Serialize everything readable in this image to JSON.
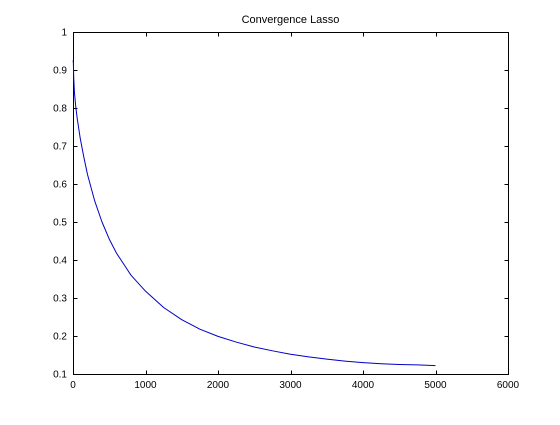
{
  "chart_data": {
    "type": "line",
    "title": "Convergence Lasso",
    "xlabel": "",
    "ylabel": "",
    "xlim": [
      0,
      6000
    ],
    "ylim": [
      0.1,
      1
    ],
    "xticks": [
      0,
      1000,
      2000,
      3000,
      4000,
      5000,
      6000
    ],
    "xtick_labels": [
      "0",
      "1000",
      "2000",
      "3000",
      "4000",
      "5000",
      "6000"
    ],
    "yticks": [
      0.1,
      0.2,
      0.3,
      0.4,
      0.5,
      0.6,
      0.7,
      0.8,
      0.9,
      1
    ],
    "ytick_labels": [
      "0.1",
      "0.2",
      "0.3",
      "0.4",
      "0.5",
      "0.6",
      "0.7",
      "0.8",
      "0.9",
      "1"
    ],
    "grid": false,
    "legend": "none",
    "series": [
      {
        "color": "#0000c8",
        "x": [
          0,
          5,
          10,
          20,
          40,
          60,
          80,
          100,
          150,
          200,
          300,
          400,
          500,
          600,
          800,
          1000,
          1250,
          1500,
          1750,
          2000,
          2250,
          2500,
          2750,
          3000,
          3250,
          3500,
          3750,
          4000,
          4250,
          4500,
          4750,
          5000
        ],
        "y": [
          0.925,
          0.92,
          0.88,
          0.84,
          0.8,
          0.77,
          0.745,
          0.72,
          0.67,
          0.625,
          0.555,
          0.5,
          0.455,
          0.418,
          0.36,
          0.318,
          0.275,
          0.243,
          0.218,
          0.199,
          0.184,
          0.171,
          0.161,
          0.152,
          0.145,
          0.139,
          0.134,
          0.13,
          0.127,
          0.125,
          0.124,
          0.122
        ]
      }
    ]
  }
}
